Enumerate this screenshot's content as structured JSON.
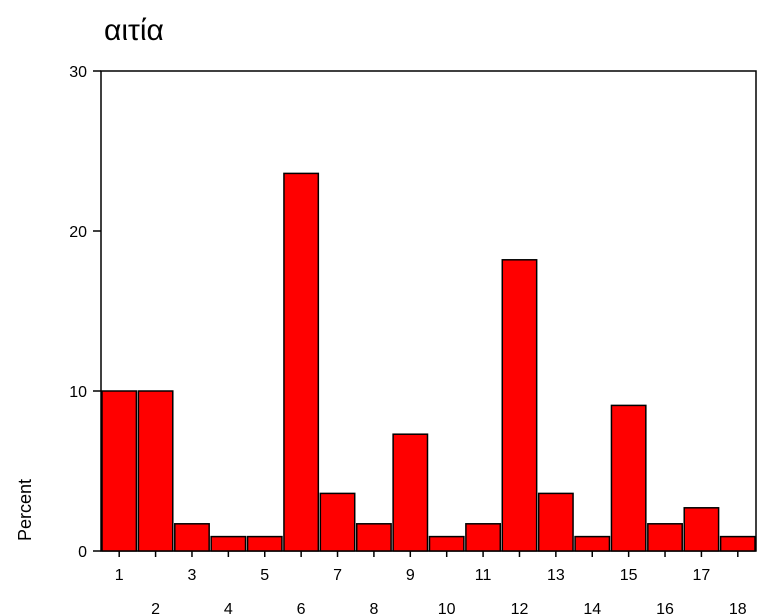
{
  "chart_data": {
    "type": "bar",
    "title": "αιτία",
    "xlabel": "",
    "ylabel": "Percent",
    "categories": [
      "1",
      "2",
      "3",
      "4",
      "5",
      "6",
      "7",
      "8",
      "9",
      "10",
      "11",
      "12",
      "13",
      "14",
      "15",
      "16",
      "17",
      "18"
    ],
    "values": [
      10.0,
      10.0,
      1.7,
      0.9,
      0.9,
      23.6,
      3.6,
      1.7,
      7.3,
      0.9,
      1.7,
      18.2,
      3.6,
      0.9,
      9.1,
      1.7,
      2.7,
      0.9
    ],
    "ylim": [
      0,
      30
    ],
    "yticks": [
      0,
      10,
      20,
      30
    ],
    "grid": false,
    "legend": "none",
    "colors": {
      "bar": "#ff0000",
      "outline": "#000000"
    }
  }
}
